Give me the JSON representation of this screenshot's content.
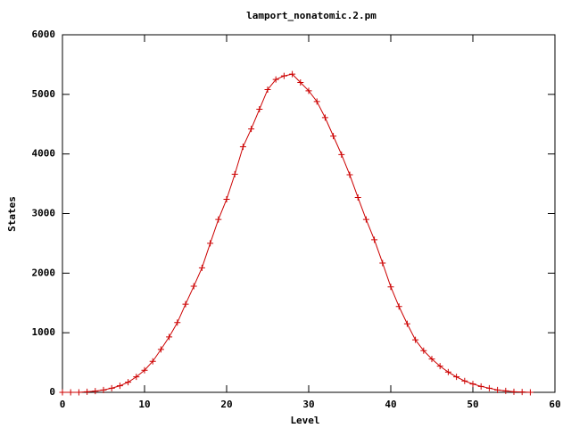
{
  "chart_data": {
    "type": "line",
    "title": "lamport_nonatomic.2.pm",
    "x_label": "Level",
    "y_label": "States",
    "x": [
      0,
      1,
      2,
      3,
      4,
      5,
      6,
      7,
      8,
      9,
      10,
      11,
      12,
      13,
      14,
      15,
      16,
      17,
      18,
      19,
      20,
      21,
      22,
      23,
      24,
      25,
      26,
      27,
      28,
      29,
      30,
      31,
      32,
      33,
      34,
      35,
      36,
      37,
      38,
      39,
      40,
      41,
      42,
      43,
      44,
      45,
      46,
      47,
      48,
      49,
      50,
      51,
      52,
      53,
      54,
      55,
      56,
      57
    ],
    "values": [
      0,
      0,
      0,
      10,
      20,
      40,
      70,
      110,
      170,
      260,
      370,
      520,
      720,
      930,
      1170,
      1480,
      1780,
      2090,
      2500,
      2900,
      3240,
      3660,
      4120,
      4420,
      4750,
      5080,
      5250,
      5310,
      5340,
      5200,
      5060,
      4880,
      4610,
      4300,
      3990,
      3650,
      3270,
      2900,
      2560,
      2170,
      1770,
      1440,
      1150,
      880,
      700,
      560,
      440,
      340,
      260,
      190,
      140,
      100,
      70,
      40,
      25,
      10,
      5,
      0
    ],
    "color": "#cc0000",
    "marker": "+",
    "xlim": [
      0,
      60
    ],
    "xticks": [
      0,
      10,
      20,
      30,
      40,
      50,
      60
    ],
    "ylim": [
      0,
      6000
    ],
    "yticks": [
      0,
      1000,
      2000,
      3000,
      4000,
      5000,
      6000
    ]
  }
}
